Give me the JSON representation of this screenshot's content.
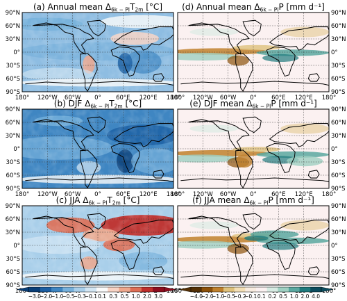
{
  "figure": {
    "panels": [
      {
        "id": "a",
        "pre": "(a) Annual mean ",
        "delta": "Δ",
        "subscript": "6k − PI",
        "var_sym": "T",
        "var_sub": "2m",
        "unit": " [°C]",
        "col": 0,
        "row": 0,
        "field": "temp",
        "season": "annual"
      },
      {
        "id": "b",
        "pre": "(b) DJF ",
        "delta": "Δ",
        "subscript": "6k − PI",
        "var_sym": "T",
        "var_sub": "2m",
        "unit": " [°C]",
        "col": 0,
        "row": 1,
        "field": "temp",
        "season": "djf"
      },
      {
        "id": "c",
        "pre": "(c) JJA ",
        "delta": "Δ",
        "subscript": "6k − PI",
        "var_sym": "T",
        "var_sub": "2m",
        "unit": " [°C]",
        "col": 0,
        "row": 2,
        "field": "temp",
        "season": "jja"
      },
      {
        "id": "d",
        "pre": "(d) Annual mean ",
        "delta": "Δ",
        "subscript": "6k − PI",
        "var_sym": "P",
        "var_sub": "",
        "unit": " [mm d⁻¹]",
        "col": 1,
        "row": 0,
        "field": "precip",
        "season": "annual"
      },
      {
        "id": "e",
        "pre": "(e) DJF mean ",
        "delta": "Δ",
        "subscript": "6k − PI",
        "var_sym": "P",
        "var_sub": "",
        "unit": " [mm d⁻¹]",
        "col": 1,
        "row": 1,
        "field": "precip",
        "season": "djf"
      },
      {
        "id": "f",
        "pre": "(f) JJA mean ",
        "delta": "Δ",
        "subscript": "6k − PI",
        "var_sym": "P",
        "var_sub": "",
        "unit": " [mm d⁻¹]",
        "col": 1,
        "row": 2,
        "field": "precip",
        "season": "jja"
      }
    ],
    "lat_labels": [
      "90°N",
      "60°N",
      "30°N",
      "0°",
      "30°S",
      "60°S",
      "90°S"
    ],
    "lon_labels": [
      "180°",
      "120°W",
      "60°W",
      "0°",
      "60°E",
      "120°E",
      "180°"
    ],
    "temp_colorbar": {
      "levels": [
        "−3.0",
        "−2.0",
        "−1.0",
        "−0.5",
        "−0.3",
        "−0.1",
        "0.1",
        "0.3",
        "0.5",
        "1.0",
        "2.0",
        "3.0"
      ],
      "colors": [
        "#0a3f78",
        "#1c5fa3",
        "#3f86c2",
        "#77b1dc",
        "#a9cfea",
        "#d3e6f3",
        "#fbfbfb",
        "#f7d3c4",
        "#eea78c",
        "#de6e55",
        "#bf2f2c",
        "#8e0d1e"
      ]
    },
    "precip_colorbar": {
      "levels": [
        "−4.0",
        "−2.0",
        "−1.0",
        "−0.5",
        "−0.2",
        "−0.1",
        "0.1",
        "0.2",
        "0.5",
        "1.0",
        "2.0",
        "4.0"
      ],
      "colors": [
        "#543005",
        "#8c510a",
        "#bf812d",
        "#dfc27d",
        "#f3dfb6",
        "#f8ece0",
        "#fbf1f1",
        "#d7ebe3",
        "#9fd0c2",
        "#5aa8a0",
        "#1f7a7d",
        "#0c4c5e"
      ]
    }
  },
  "chart_data": {
    "type": "heatmap",
    "description_panels": [
      "(a) Annual mean Δ6k−PI T2m [°C]",
      "(b) DJF Δ6k−PI T2m [°C]",
      "(c) JJA Δ6k−PI T2m [°C]",
      "(d) Annual mean Δ6k−PI P [mm d⁻¹]",
      "(e) DJF mean Δ6k−PI P [mm d⁻¹]",
      "(f) JJA mean Δ6k−PI P [mm d⁻¹]"
    ],
    "x_range": [
      -180,
      180
    ],
    "y_range": [
      -90,
      90
    ],
    "x_ticks": [
      -180,
      -120,
      -60,
      0,
      60,
      120,
      180
    ],
    "y_ticks": [
      90,
      60,
      30,
      0,
      -30,
      -60,
      -90
    ],
    "temp_levels": [
      -3.0,
      -2.0,
      -1.0,
      -0.5,
      -0.3,
      -0.1,
      0.1,
      0.3,
      0.5,
      1.0,
      2.0,
      3.0
    ],
    "precip_levels": [
      -4.0,
      -2.0,
      -1.0,
      -0.5,
      -0.2,
      -0.1,
      0.1,
      0.2,
      0.5,
      1.0,
      2.0,
      4.0
    ],
    "grid": true
  }
}
